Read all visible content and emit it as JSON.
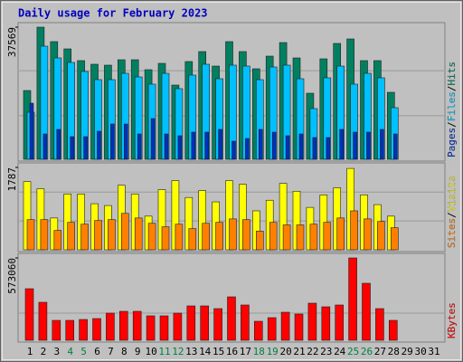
{
  "chart_data": {
    "type": "bar",
    "title": "Daily usage for February 2023",
    "legend_separator": "/",
    "categories": [
      "1",
      "2",
      "3",
      "4",
      "5",
      "6",
      "7",
      "8",
      "9",
      "10",
      "11",
      "12",
      "13",
      "14",
      "15",
      "16",
      "17",
      "18",
      "19",
      "20",
      "21",
      "22",
      "23",
      "24",
      "25",
      "26",
      "27",
      "28",
      "29",
      "30",
      "31"
    ],
    "category_colors": [
      "#000000",
      "#000000",
      "#000000",
      "#008040",
      "#008040",
      "#000000",
      "#000000",
      "#000000",
      "#000000",
      "#000000",
      "#008040",
      "#008040",
      "#000000",
      "#000000",
      "#000000",
      "#000000",
      "#000000",
      "#008040",
      "#008040",
      "#000000",
      "#000000",
      "#000000",
      "#000000",
      "#000000",
      "#008040",
      "#008040",
      "#000000",
      "#000000",
      "#000000",
      "#000000",
      "#000000"
    ],
    "panels": [
      {
        "ylim": [
          0,
          37569
        ],
        "yticks": [
          37569
        ],
        "series": [
          {
            "name": "Hits",
            "color": "#008060",
            "values": [
              19550,
              37569,
              33450,
              31390,
              28050,
              27020,
              26760,
              28300,
              28300,
              25470,
              27270,
              21100,
              27790,
              30620,
              26500,
              33450,
              30620,
              25730,
              29330,
              33190,
              28820,
              18780,
              28560,
              32940,
              34220,
              28050,
              28050,
              19040,
              null,
              null,
              null
            ]
          },
          {
            "name": "Files",
            "color": "#00c0ff",
            "values": [
              13380,
              32160,
              28820,
              27530,
              24960,
              22640,
              22640,
              24440,
              23410,
              21360,
              24440,
              20070,
              23930,
              27020,
              22900,
              26760,
              26500,
              22640,
              26240,
              26760,
              22900,
              14410,
              23160,
              26500,
              21360,
              24440,
              23160,
              14670,
              null,
              null,
              null
            ]
          },
          {
            "name": "Pages",
            "color": "#0030c0",
            "values": [
              15950,
              7200,
              8490,
              6430,
              6430,
              7980,
              10030,
              10030,
              7200,
              11580,
              7200,
              6690,
              7720,
              7720,
              8490,
              5150,
              5920,
              8490,
              7720,
              6690,
              7200,
              6180,
              6180,
              8490,
              7720,
              7720,
              8490,
              7200,
              null,
              null,
              null
            ]
          }
        ]
      },
      {
        "ylim": [
          0,
          1787
        ],
        "yticks": [
          1787
        ],
        "series": [
          {
            "name": "Visits",
            "color": "#ffff00",
            "values": [
              1480,
              1325,
              690,
              1210,
              1210,
              1000,
              960,
              1400,
              1210,
              730,
              1305,
              1500,
              1135,
              1285,
              1040,
              1500,
              1420,
              845,
              1075,
              1440,
              1270,
              920,
              1190,
              1345,
              1765,
              1190,
              980,
              730,
              null,
              null,
              null
            ]
          },
          {
            "name": "Sites",
            "color": "#ff8000",
            "values": [
              655,
              655,
              420,
              595,
              555,
              635,
              655,
              790,
              690,
              575,
              500,
              555,
              460,
              575,
              595,
              670,
              655,
              405,
              595,
              540,
              540,
              555,
              595,
              690,
              845,
              670,
              615,
              480,
              null,
              null,
              null
            ]
          }
        ]
      },
      {
        "ylim": [
          0,
          573060
        ],
        "yticks": [
          573060
        ],
        "series": [
          {
            "name": "KBytes",
            "color": "#ff0000",
            "values": [
              358900,
              264500,
              138500,
              138500,
              144800,
              151100,
              188900,
              201500,
              201500,
              170000,
              170000,
              188900,
              239300,
              239300,
              220400,
              302300,
              245600,
              132200,
              157400,
              195200,
              182600,
              258200,
              233000,
              245600,
              573060,
              396700,
              220400,
              138500,
              null,
              null,
              null
            ]
          }
        ]
      }
    ]
  }
}
